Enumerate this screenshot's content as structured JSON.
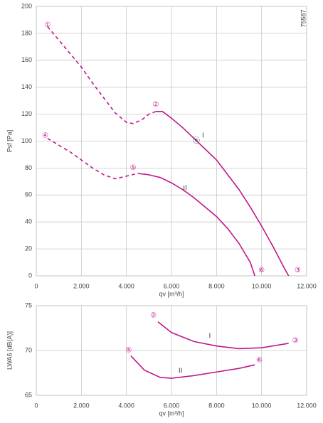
{
  "chart_data": [
    {
      "type": "line",
      "ylabel": "Psf [Pa]",
      "xlabel": "qv [m³/h]",
      "code": "75587",
      "color": "#c0178c",
      "grid": true,
      "xlim": [
        0,
        12000
      ],
      "ylim": [
        0,
        200
      ],
      "xticks": [
        0,
        {
          "value": 2000,
          "label": "2.000"
        },
        {
          "value": 4000,
          "label": "4.000"
        },
        {
          "value": 6000,
          "label": "6.000"
        },
        {
          "value": 8000,
          "label": "8.000"
        },
        {
          "value": 10000,
          "label": "10.000"
        },
        {
          "value": 12000,
          "label": "12.000"
        }
      ],
      "yticks": [
        0,
        20,
        40,
        60,
        80,
        100,
        120,
        140,
        160,
        180,
        200
      ],
      "series": [
        {
          "name": "I",
          "label_at": [
            7400,
            104
          ],
          "segments": [
            {
              "style": "dashed",
              "x": [
                500,
                1000,
                1500,
                2000,
                2500,
                3000,
                3500,
                4000,
                4300,
                4700,
                5000,
                5300
              ],
              "values": [
                185,
                175,
                165,
                155,
                143,
                132,
                121,
                114,
                113,
                116,
                120,
                122
              ]
            },
            {
              "style": "solid",
              "x": [
                5300,
                5600,
                6000,
                6500,
                7000,
                7500,
                8000,
                8500,
                9000,
                9500,
                10000,
                10500,
                11000,
                11200
              ],
              "values": [
                122,
                122,
                117,
                110,
                102,
                94,
                86,
                75,
                64,
                51,
                37,
                22,
                6,
                0
              ]
            }
          ]
        },
        {
          "name": "II",
          "label_at": [
            6600,
            65
          ],
          "segments": [
            {
              "style": "dashed",
              "x": [
                500,
                1000,
                1500,
                2000,
                2500,
                3000,
                3500,
                4000,
                4500
              ],
              "values": [
                102,
                97,
                92,
                86,
                80,
                75,
                72,
                74,
                76
              ]
            },
            {
              "style": "solid",
              "x": [
                4500,
                5000,
                5500,
                6000,
                6500,
                7000,
                7500,
                8000,
                8500,
                9000,
                9500,
                9700
              ],
              "values": [
                76,
                75,
                73,
                69,
                64,
                58,
                51,
                44,
                35,
                24,
                10,
                0
              ]
            }
          ]
        }
      ],
      "annotations": [
        {
          "text": "①",
          "x": 500,
          "y": 186
        },
        {
          "text": "②",
          "x": 5300,
          "y": 127
        },
        {
          "text": "③",
          "x": 11600,
          "y": 4
        },
        {
          "text": "④",
          "x": 400,
          "y": 104
        },
        {
          "text": "⑤",
          "x": 4300,
          "y": 80
        },
        {
          "text": "⑥",
          "x": 10000,
          "y": 4
        },
        {
          "text": "ⓝ",
          "x": 7100,
          "y": 100
        }
      ]
    },
    {
      "type": "line",
      "ylabel": "LWA6 [dB(A)]",
      "xlabel": "qv [m³/h]",
      "color": "#c0178c",
      "grid": true,
      "xlim": [
        0,
        12000
      ],
      "ylim": [
        65,
        75
      ],
      "xticks": [
        0,
        {
          "value": 2000,
          "label": "2.000"
        },
        {
          "value": 4000,
          "label": "4.000"
        },
        {
          "value": 6000,
          "label": "6.000"
        },
        {
          "value": 8000,
          "label": "8.000"
        },
        {
          "value": 10000,
          "label": "10.000"
        },
        {
          "value": 12000,
          "label": "12.000"
        }
      ],
      "yticks": [
        65,
        70,
        75
      ],
      "series": [
        {
          "name": "I",
          "label_at": [
            7700,
            71.6
          ],
          "segments": [
            {
              "style": "solid",
              "x": [
                5400,
                6000,
                7000,
                8000,
                9000,
                10000,
                11200
              ],
              "values": [
                73.2,
                72,
                71,
                70.5,
                70.2,
                70.3,
                70.8
              ]
            }
          ]
        },
        {
          "name": "II",
          "label_at": [
            6400,
            67.7
          ],
          "segments": [
            {
              "style": "solid",
              "x": [
                4200,
                4800,
                5500,
                6000,
                7000,
                8000,
                9000,
                9700
              ],
              "values": [
                69.4,
                67.8,
                67,
                66.9,
                67.2,
                67.6,
                68,
                68.4
              ]
            }
          ]
        }
      ],
      "annotations": [
        {
          "text": "②",
          "x": 5200,
          "y": 73.9
        },
        {
          "text": "③",
          "x": 11500,
          "y": 71.1
        },
        {
          "text": "⑤",
          "x": 4100,
          "y": 70
        },
        {
          "text": "⑥",
          "x": 9900,
          "y": 68.9
        }
      ]
    }
  ]
}
